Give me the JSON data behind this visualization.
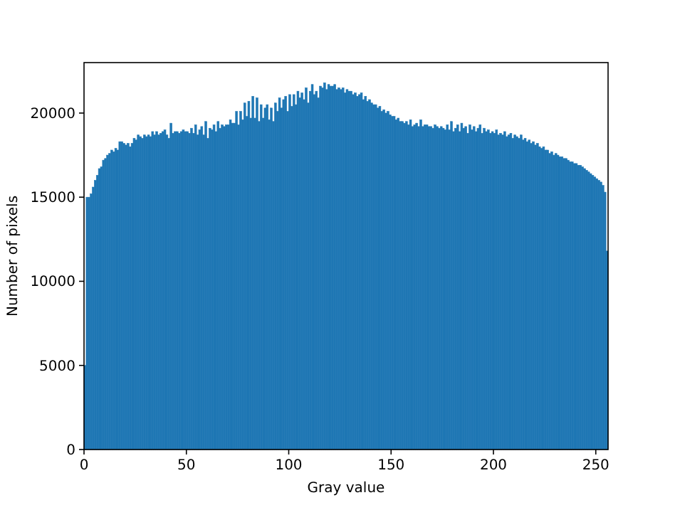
{
  "chart_data": {
    "type": "histogram",
    "xlabel": "Gray value",
    "ylabel": "Number of pixels",
    "color": "#1f77b4",
    "bins": [
      0,
      1,
      2,
      3,
      4,
      5,
      6,
      7,
      8,
      9,
      10,
      11,
      12,
      13,
      14,
      15,
      16,
      17,
      18,
      19,
      20,
      21,
      22,
      23,
      24,
      25,
      26,
      27,
      28,
      29,
      30,
      31,
      32,
      33,
      34,
      35,
      36,
      37,
      38,
      39,
      40,
      41,
      42,
      43,
      44,
      45,
      46,
      47,
      48,
      49,
      50,
      51,
      52,
      53,
      54,
      55,
      56,
      57,
      58,
      59,
      60,
      61,
      62,
      63,
      64,
      65,
      66,
      67,
      68,
      69,
      70,
      71,
      72,
      73,
      74,
      75,
      76,
      77,
      78,
      79,
      80,
      81,
      82,
      83,
      84,
      85,
      86,
      87,
      88,
      89,
      90,
      91,
      92,
      93,
      94,
      95,
      96,
      97,
      98,
      99,
      100,
      101,
      102,
      103,
      104,
      105,
      106,
      107,
      108,
      109,
      110,
      111,
      112,
      113,
      114,
      115,
      116,
      117,
      118,
      119,
      120,
      121,
      122,
      123,
      124,
      125,
      126,
      127,
      128,
      129,
      130,
      131,
      132,
      133,
      134,
      135,
      136,
      137,
      138,
      139,
      140,
      141,
      142,
      143,
      144,
      145,
      146,
      147,
      148,
      149,
      150,
      151,
      152,
      153,
      154,
      155,
      156,
      157,
      158,
      159,
      160,
      161,
      162,
      163,
      164,
      165,
      166,
      167,
      168,
      169,
      170,
      171,
      172,
      173,
      174,
      175,
      176,
      177,
      178,
      179,
      180,
      181,
      182,
      183,
      184,
      185,
      186,
      187,
      188,
      189,
      190,
      191,
      192,
      193,
      194,
      195,
      196,
      197,
      198,
      199,
      200,
      201,
      202,
      203,
      204,
      205,
      206,
      207,
      208,
      209,
      210,
      211,
      212,
      213,
      214,
      215,
      216,
      217,
      218,
      219,
      220,
      221,
      222,
      223,
      224,
      225,
      226,
      227,
      228,
      229,
      230,
      231,
      232,
      233,
      234,
      235,
      236,
      237,
      238,
      239,
      240,
      241,
      242,
      243,
      244,
      245,
      246,
      247,
      248,
      249,
      250,
      251,
      252,
      253,
      254,
      255,
      256
    ],
    "values": [
      5000,
      15000,
      15000,
      15200,
      15600,
      16000,
      16300,
      16700,
      16800,
      17200,
      17300,
      17500,
      17600,
      17800,
      17700,
      17900,
      17800,
      18300,
      18300,
      18200,
      18100,
      18200,
      18000,
      18200,
      18500,
      18400,
      18700,
      18600,
      18500,
      18700,
      18600,
      18700,
      18600,
      18900,
      18700,
      18900,
      18700,
      18800,
      18900,
      19000,
      18700,
      18500,
      19400,
      18800,
      18900,
      18900,
      18800,
      18900,
      19000,
      18900,
      18900,
      18800,
      19100,
      18800,
      19300,
      18700,
      19000,
      19200,
      18700,
      19500,
      18500,
      19100,
      19000,
      19300,
      18900,
      19500,
      19100,
      19300,
      19200,
      19300,
      19300,
      19600,
      19400,
      19400,
      20100,
      19300,
      20100,
      19600,
      20600,
      19800,
      20700,
      19700,
      21000,
      19700,
      20900,
      19500,
      20500,
      19700,
      20300,
      20500,
      19600,
      20300,
      19500,
      20600,
      20100,
      20900,
      20300,
      20800,
      21000,
      20100,
      21100,
      20400,
      21100,
      20500,
      21300,
      20900,
      21200,
      20800,
      21500,
      20600,
      21300,
      21700,
      21100,
      21300,
      20900,
      21600,
      21500,
      21800,
      21400,
      21700,
      21600,
      21600,
      21700,
      21400,
      21500,
      21400,
      21500,
      21200,
      21400,
      21300,
      21300,
      21100,
      21200,
      21000,
      21100,
      21200,
      20800,
      21000,
      20700,
      20800,
      20600,
      20500,
      20500,
      20300,
      20400,
      20100,
      20200,
      20000,
      20100,
      19900,
      19800,
      19800,
      19600,
      19700,
      19500,
      19500,
      19400,
      19500,
      19300,
      19600,
      19200,
      19300,
      19400,
      19200,
      19600,
      19200,
      19300,
      19300,
      19200,
      19200,
      19100,
      19300,
      19200,
      19100,
      19200,
      19100,
      19000,
      19300,
      19000,
      19500,
      18900,
      19100,
      19300,
      18900,
      19400,
      19100,
      19200,
      18800,
      19300,
      19000,
      19200,
      18900,
      19100,
      19300,
      18800,
      19100,
      18900,
      19000,
      18800,
      18900,
      18800,
      19000,
      18700,
      18800,
      18700,
      18900,
      18600,
      18700,
      18800,
      18500,
      18700,
      18600,
      18500,
      18700,
      18400,
      18500,
      18300,
      18400,
      18200,
      18300,
      18100,
      18200,
      18000,
      17900,
      18000,
      17800,
      17800,
      17600,
      17700,
      17500,
      17600,
      17500,
      17400,
      17400,
      17300,
      17300,
      17200,
      17100,
      17100,
      17000,
      17000,
      16900,
      16900,
      16800,
      16700,
      16600,
      16500,
      16400,
      16300,
      16200,
      16100,
      16000,
      15900,
      15700,
      15300,
      11800
    ],
    "xlim": [
      0,
      256
    ],
    "xticks": [
      0,
      50,
      100,
      150,
      200,
      250
    ],
    "ylim": [
      0,
      23000
    ],
    "yticks": [
      0,
      5000,
      10000,
      15000,
      20000
    ]
  }
}
